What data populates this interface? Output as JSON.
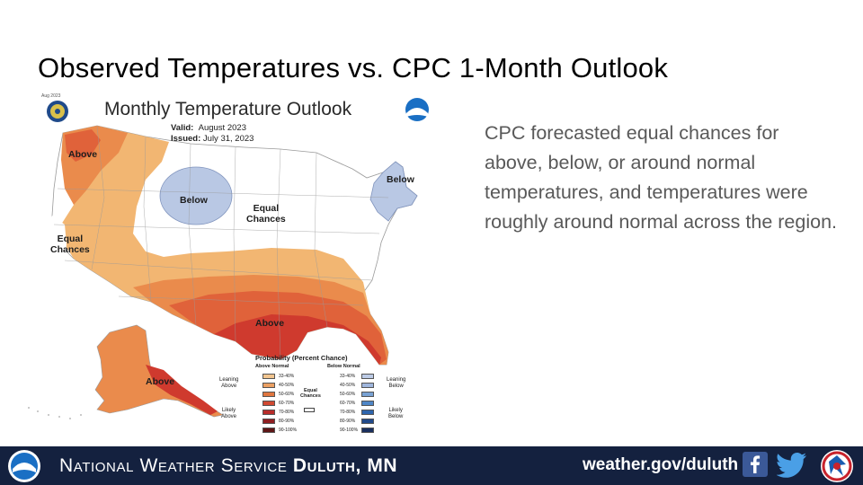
{
  "slide": {
    "title": "Observed Temperatures vs. CPC 1-Month Outlook",
    "description": "CPC forecasted equal chances for above, below, or around normal temperatures, and temperatures were roughly around normal across the region."
  },
  "map": {
    "title": "Monthly Temperature Outlook",
    "valid_label": "Valid:",
    "valid_value": "August 2023",
    "issued_label": "Issued:",
    "issued_value": "July 31, 2023",
    "corner_tag": "Aug 2023",
    "region_labels": {
      "above_northwest": "Above",
      "equal_west": "Equal\nChances",
      "below_north": "Below",
      "equal_central": "Equal\nChances",
      "below_northeast": "Below",
      "above_south": "Above",
      "above_alaska": "Above"
    },
    "colors": {
      "above_33_40": "#f2b672",
      "above_40_50": "#ea8b4c",
      "above_50_60": "#e0623a",
      "above_60_70": "#cf3a2e",
      "below_33_40": "#b9c8e4",
      "equal": "#ffffff",
      "state_lines": "#8a8a8a"
    },
    "legend": {
      "title": "Probability (Percent Chance)",
      "above_header": "Above Normal",
      "below_header": "Below Normal",
      "leaning_above": "Leaning\nAbove",
      "likely_above": "Likely\nAbove",
      "leaning_below": "Leaning\nBelow",
      "likely_below": "Likely\nBelow",
      "equal_chances": "Equal\nChances",
      "ranges": [
        "33-40%",
        "40-50%",
        "50-60%",
        "60-70%",
        "70-80%",
        "80-90%",
        "90-100%"
      ],
      "above_colors": [
        "#f2c58f",
        "#eba063",
        "#e0763f",
        "#d14a32",
        "#b82c2a",
        "#8f1f22",
        "#5e1616"
      ],
      "below_colors": [
        "#bccbe6",
        "#9fb6dd",
        "#79a2d4",
        "#4f86c6",
        "#2e65ad",
        "#224a8a",
        "#1a2f5e"
      ]
    }
  },
  "footer": {
    "agency": "National Weather Service",
    "office": "Duluth, MN",
    "website": "weather.gov/duluth",
    "icons": [
      "noaa-logo",
      "facebook-icon",
      "twitter-icon",
      "nws-logo"
    ],
    "background": "#14213f"
  }
}
